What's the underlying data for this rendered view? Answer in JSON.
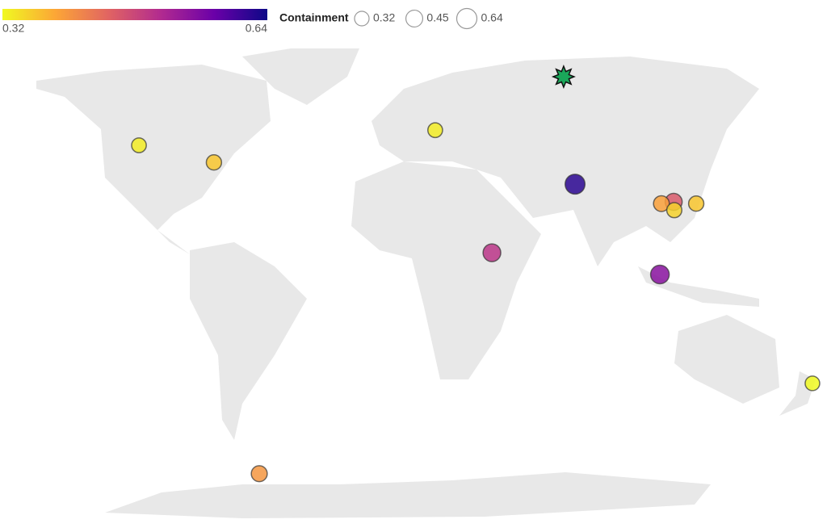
{
  "chart_data": {
    "type": "bubble_map",
    "colorbar": {
      "range": [
        0.32,
        0.64
      ],
      "ticks": [
        0.32,
        0.64
      ],
      "colors": [
        "#f0f921",
        "#fca636",
        "#e16462",
        "#b12a90",
        "#6a00a8",
        "#0d0887"
      ]
    },
    "size_legend": {
      "title": "Containment",
      "values": [
        0.32,
        0.45,
        0.64
      ]
    },
    "points": [
      {
        "lon": -138.7,
        "lat": 46.5,
        "value": 0.33
      },
      {
        "lon": -103.8,
        "lat": 40.5,
        "value": 0.36
      },
      {
        "lon": -0.8,
        "lat": 51.8,
        "value": 0.33
      },
      {
        "lon": 64.3,
        "lat": 32.9,
        "value": 0.62
      },
      {
        "lon": 25.6,
        "lat": 8.9,
        "value": 0.5
      },
      {
        "lon": 103.8,
        "lat": 1.3,
        "value": 0.55
      },
      {
        "lon": 110.2,
        "lat": 26.7,
        "value": 0.46
      },
      {
        "lon": 104.5,
        "lat": 26.1,
        "value": 0.39
      },
      {
        "lon": 110.5,
        "lat": 23.8,
        "value": 0.35
      },
      {
        "lon": 120.7,
        "lat": 26.1,
        "value": 0.36
      },
      {
        "lon": 174.8,
        "lat": -36.8,
        "value": 0.32
      },
      {
        "lon": -82.7,
        "lat": -68.4,
        "value": 0.4
      }
    ],
    "highlight": {
      "lon": 59.0,
      "lat": 70.5,
      "color": "#1aa75a"
    }
  }
}
